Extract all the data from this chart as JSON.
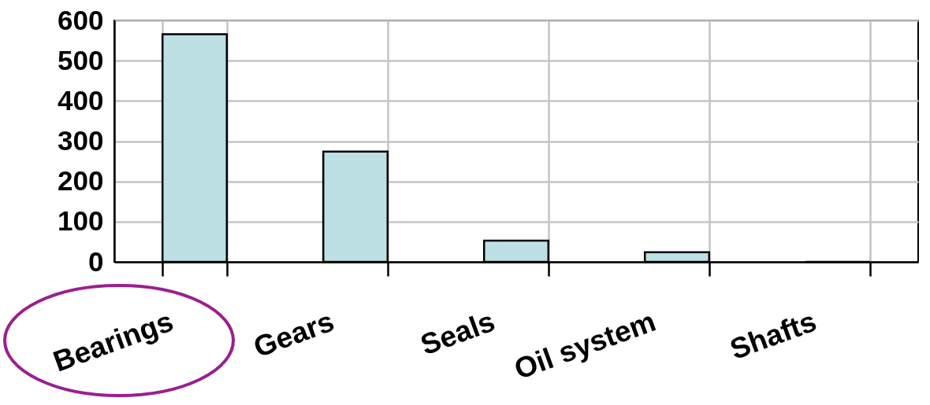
{
  "chart_data": {
    "type": "bar",
    "categories": [
      "Bearings",
      "Gears",
      "Seals",
      "Oil system",
      "Shafts"
    ],
    "values": [
      566,
      274,
      53,
      24,
      0
    ],
    "color": "#bce0e3",
    "ylim": [
      0,
      600
    ],
    "yticks": [
      0,
      100,
      200,
      300,
      400,
      500,
      600
    ],
    "grid": true
  }
}
